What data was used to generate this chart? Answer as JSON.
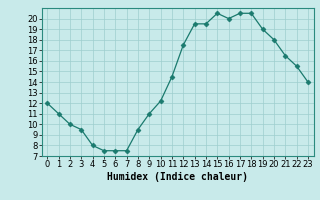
{
  "x": [
    0,
    1,
    2,
    3,
    4,
    5,
    6,
    7,
    8,
    9,
    10,
    11,
    12,
    13,
    14,
    15,
    16,
    17,
    18,
    19,
    20,
    21,
    22,
    23
  ],
  "y": [
    12,
    11,
    10,
    9.5,
    8,
    7.5,
    7.5,
    7.5,
    9.5,
    11,
    12.2,
    14.5,
    17.5,
    19.5,
    19.5,
    20.5,
    20,
    20.5,
    20.5,
    19,
    18,
    16.5,
    15.5,
    14
  ],
  "line_color": "#1a7a6e",
  "marker": "D",
  "marker_size": 2.5,
  "bg_color": "#c8eaea",
  "grid_color": "#9ecece",
  "xlabel": "Humidex (Indice chaleur)",
  "xlim": [
    -0.5,
    23.5
  ],
  "ylim": [
    7,
    21
  ],
  "xticks": [
    0,
    1,
    2,
    3,
    4,
    5,
    6,
    7,
    8,
    9,
    10,
    11,
    12,
    13,
    14,
    15,
    16,
    17,
    18,
    19,
    20,
    21,
    22,
    23
  ],
  "yticks": [
    7,
    8,
    9,
    10,
    11,
    12,
    13,
    14,
    15,
    16,
    17,
    18,
    19,
    20
  ],
  "xlabel_fontsize": 7,
  "tick_fontsize": 6
}
